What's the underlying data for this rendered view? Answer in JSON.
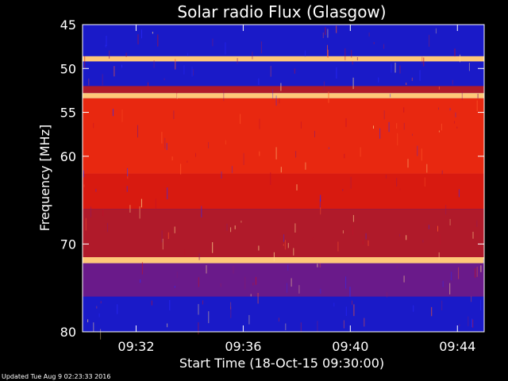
{
  "chart_data": {
    "type": "heatmap",
    "title": "Solar radio Flux (Glasgow)",
    "xlabel": "Start Time (18-Oct-15 09:30:00)",
    "ylabel": "Frequency [MHz]",
    "x_tick_labels": [
      "09:32",
      "09:36",
      "09:40",
      "09:44"
    ],
    "x_tick_values_minutes": [
      2,
      6,
      10,
      14
    ],
    "x_range_minutes": [
      0,
      15
    ],
    "y_tick_labels": [
      "45",
      "50",
      "55",
      "60",
      "70",
      "80"
    ],
    "y_tick_values": [
      45,
      50,
      55,
      60,
      70,
      80
    ],
    "y_range": [
      45,
      80
    ],
    "frequency_axis_inverted": true,
    "bands": [
      {
        "from": 45.0,
        "to": 48.6,
        "level": "low"
      },
      {
        "from": 48.6,
        "to": 49.2,
        "level": "very-high"
      },
      {
        "from": 49.2,
        "to": 52.0,
        "level": "low"
      },
      {
        "from": 52.0,
        "to": 52.8,
        "level": "mid"
      },
      {
        "from": 52.8,
        "to": 53.4,
        "level": "very-high"
      },
      {
        "from": 53.4,
        "to": 62.0,
        "level": "high"
      },
      {
        "from": 62.0,
        "to": 66.0,
        "level": "high-mid"
      },
      {
        "from": 66.0,
        "to": 71.5,
        "level": "mid"
      },
      {
        "from": 71.5,
        "to": 72.2,
        "level": "very-high"
      },
      {
        "from": 72.2,
        "to": 76.0,
        "level": "mid-low"
      },
      {
        "from": 76.0,
        "to": 80.0,
        "level": "low"
      }
    ],
    "colors": {
      "low": "#1a1ac8",
      "mid-low": "#6a1a8a",
      "mid": "#b01a2a",
      "high-mid": "#d81a10",
      "high": "#e82810",
      "very-high": "#ffc878"
    },
    "footer": "Updated Tue Aug  9 02:23:33 2016"
  }
}
